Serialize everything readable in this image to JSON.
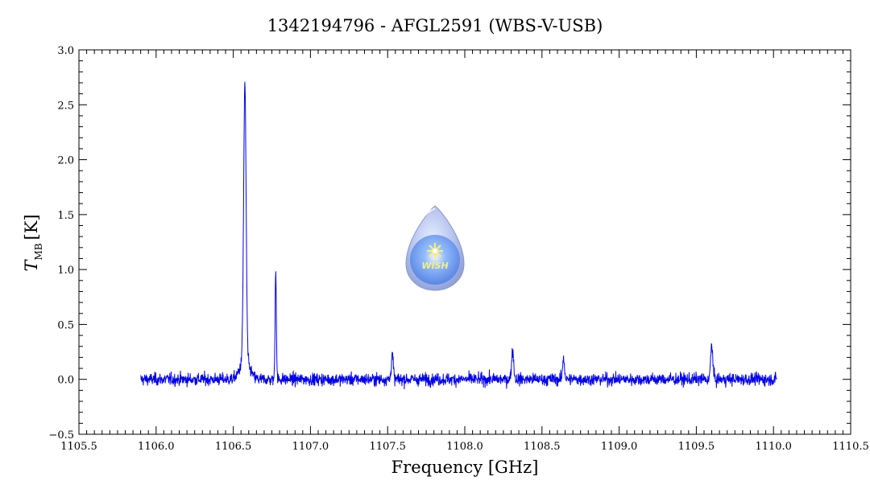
{
  "chart_data": {
    "type": "line",
    "title": "1342194796 - AFGL2591 (WBS-V-USB)",
    "xlabel": "Frequency [GHz]",
    "ylabel_main": "T",
    "ylabel_sub": "MB",
    "ylabel_unit": "[K]",
    "xlim": [
      1105.5,
      1110.5
    ],
    "ylim": [
      -0.5,
      3.0
    ],
    "x_ticks": [
      "1105.5",
      "1106.0",
      "1106.5",
      "1107.0",
      "1107.5",
      "1108.0",
      "1108.5",
      "1109.0",
      "1109.5",
      "1110.0",
      "1110.5"
    ],
    "y_ticks": [
      "−0.5",
      "0.0",
      "0.5",
      "1.0",
      "1.5",
      "2.0",
      "2.5",
      "3.0"
    ],
    "grid": false,
    "series": [
      {
        "color": "#0000ee",
        "x_range": [
          1105.9,
          1110.02
        ],
        "baseline": 0.0,
        "noise_rms": 0.04,
        "peaks": [
          {
            "x": 1106.575,
            "y": 2.5
          },
          {
            "x": 1106.775,
            "y": 1.02
          },
          {
            "x": 1107.53,
            "y": 0.24
          },
          {
            "x": 1108.31,
            "y": 0.26
          },
          {
            "x": 1108.64,
            "y": 0.2
          },
          {
            "x": 1109.6,
            "y": 0.31
          }
        ]
      }
    ]
  },
  "watermark": {
    "label": "WISH",
    "icon": "water-drop-star-icon",
    "color": "#a9b8e6"
  }
}
